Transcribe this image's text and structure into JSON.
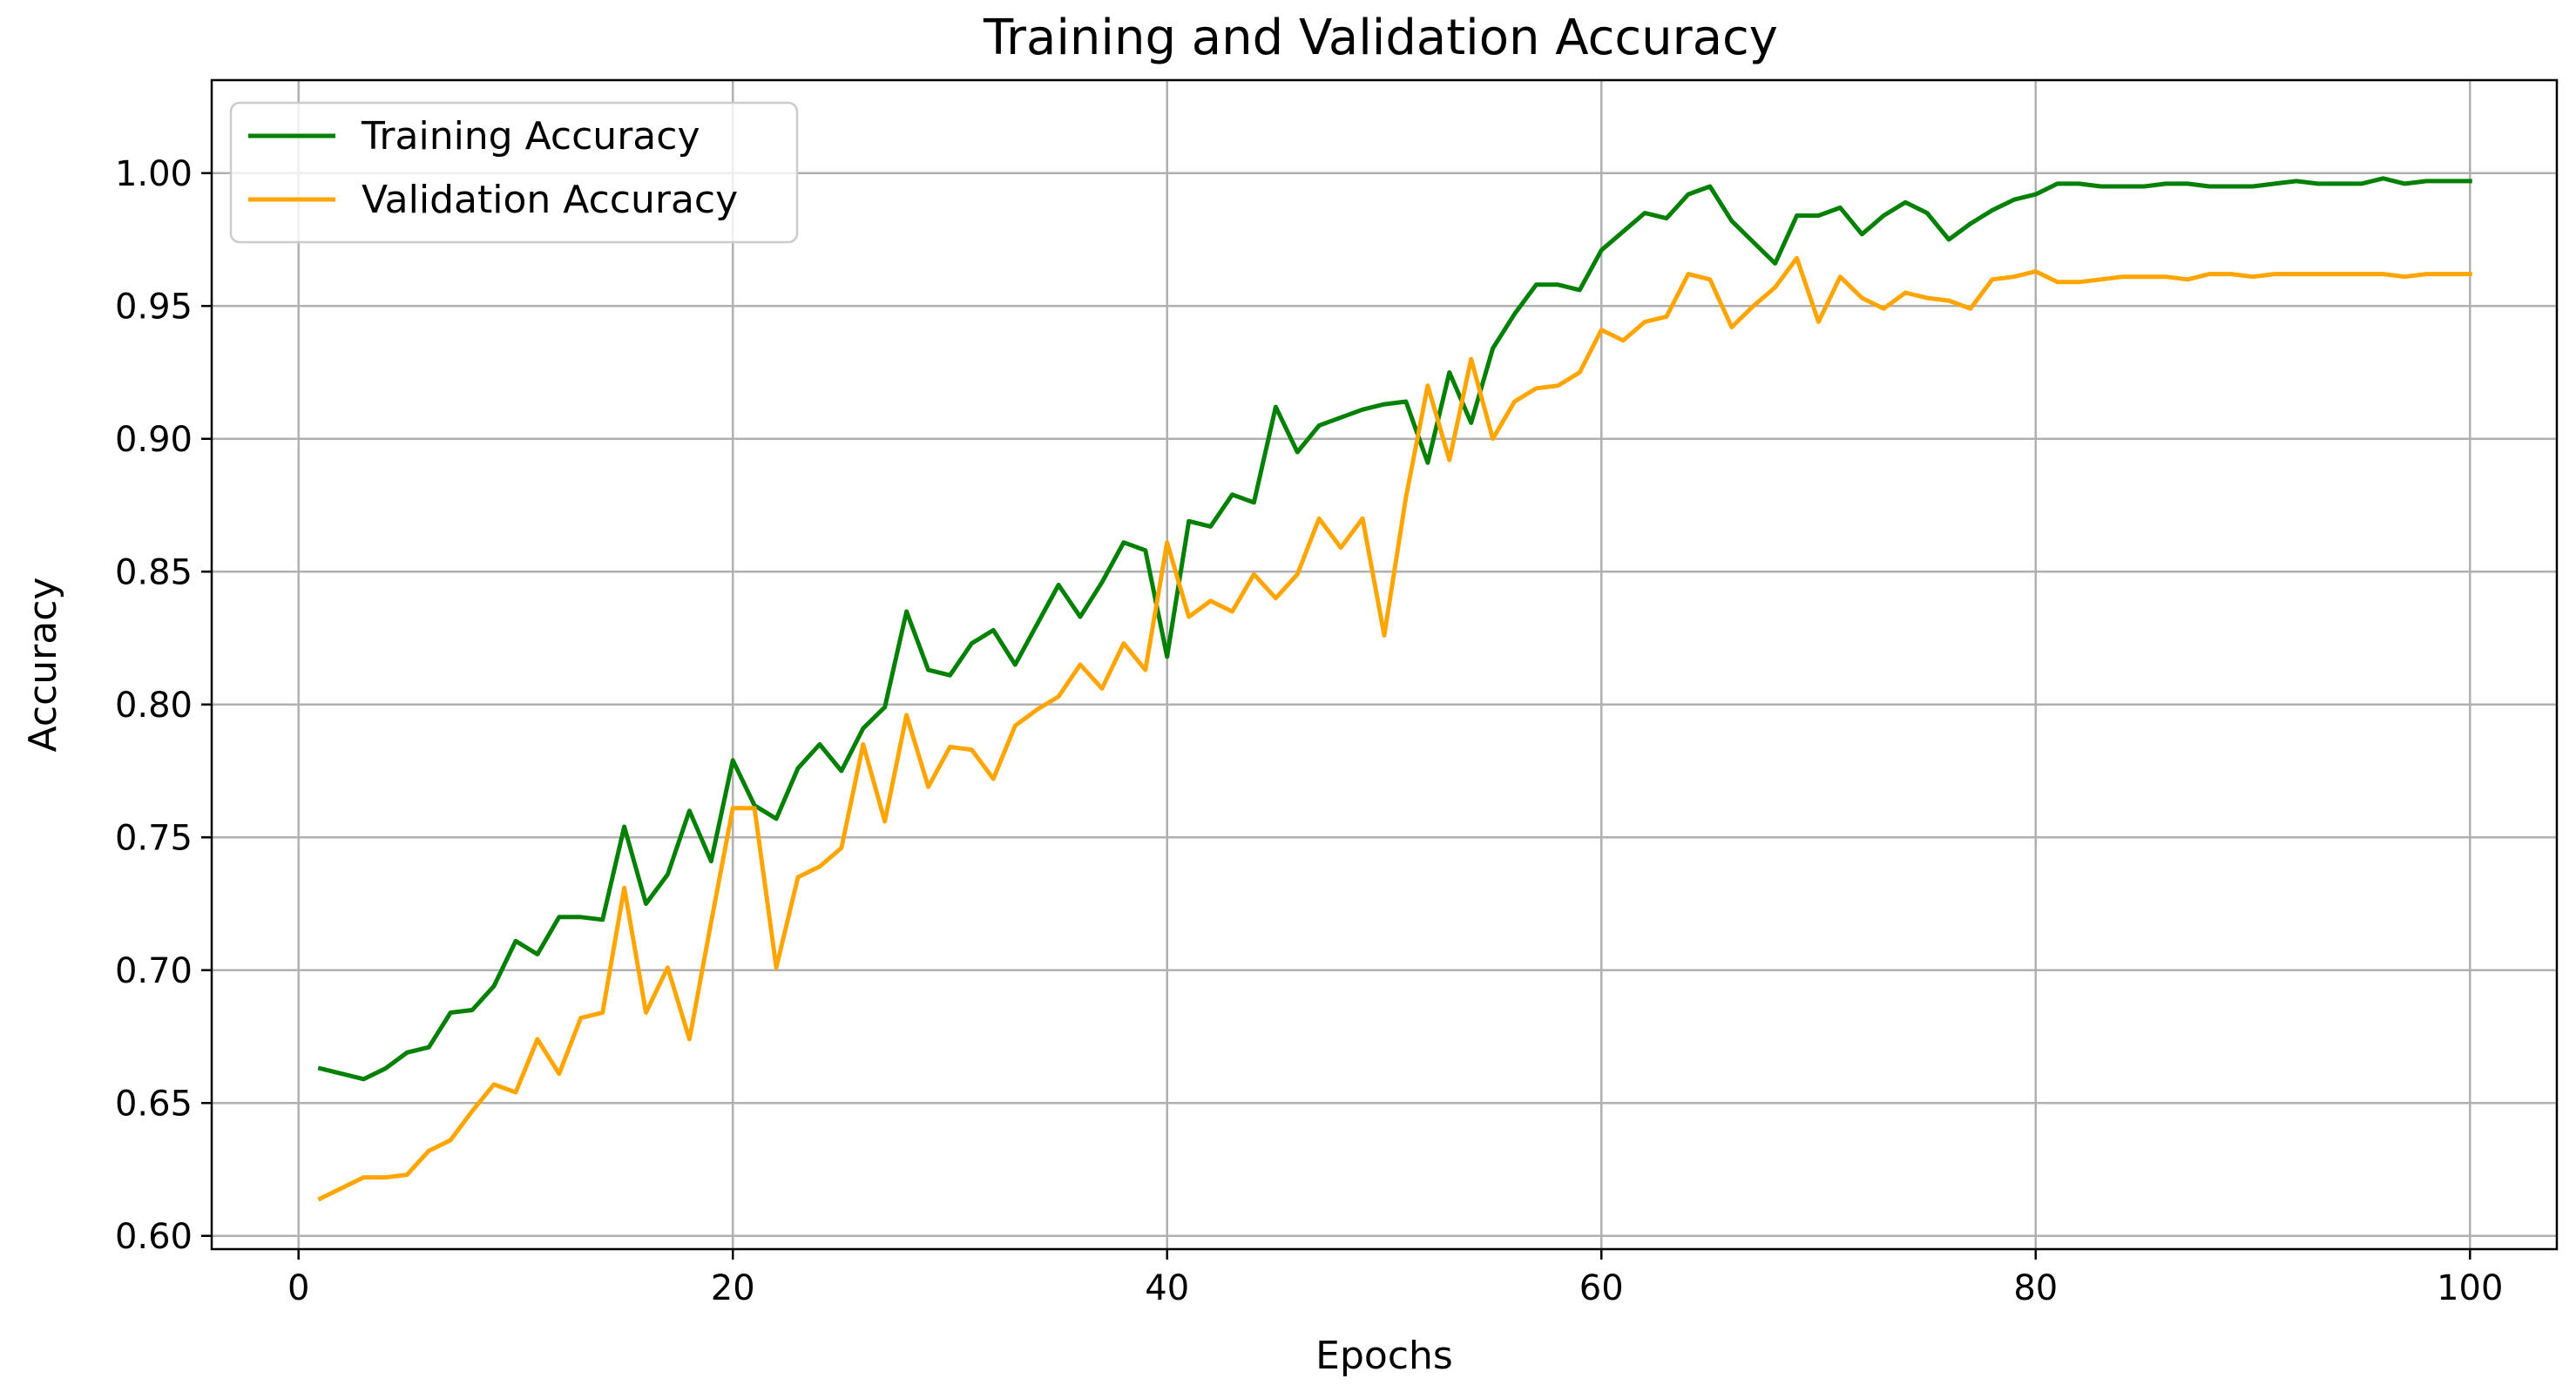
{
  "chart_data": {
    "type": "line",
    "title": "Training and Validation Accuracy",
    "xlabel": "Epochs",
    "ylabel": "Accuracy",
    "xlim": [
      -4,
      104
    ],
    "ylim": [
      0.595,
      1.035
    ],
    "xticks": [
      0,
      20,
      40,
      60,
      80,
      100
    ],
    "yticks": [
      0.6,
      0.65,
      0.7,
      0.75,
      0.8,
      0.85,
      0.9,
      0.95,
      1.0
    ],
    "xtick_labels": [
      "0",
      "20",
      "40",
      "60",
      "80",
      "100"
    ],
    "ytick_labels": [
      "0.60",
      "0.65",
      "0.70",
      "0.75",
      "0.80",
      "0.85",
      "0.90",
      "0.95",
      "1.00"
    ],
    "grid": true,
    "legend_position": "top-left",
    "x_start": 1,
    "series": [
      {
        "name": "Training Accuracy",
        "color": "#008000",
        "values": [
          0.663,
          0.661,
          0.659,
          0.663,
          0.669,
          0.671,
          0.684,
          0.685,
          0.694,
          0.711,
          0.706,
          0.72,
          0.72,
          0.719,
          0.754,
          0.725,
          0.736,
          0.76,
          0.741,
          0.779,
          0.762,
          0.757,
          0.776,
          0.785,
          0.775,
          0.791,
          0.799,
          0.835,
          0.813,
          0.811,
          0.823,
          0.828,
          0.815,
          0.83,
          0.845,
          0.833,
          0.846,
          0.861,
          0.858,
          0.818,
          0.869,
          0.867,
          0.879,
          0.876,
          0.912,
          0.895,
          0.905,
          0.908,
          0.911,
          0.913,
          0.914,
          0.891,
          0.925,
          0.906,
          0.934,
          0.947,
          0.958,
          0.958,
          0.956,
          0.971,
          0.978,
          0.985,
          0.983,
          0.992,
          0.995,
          0.982,
          0.974,
          0.966,
          0.984,
          0.984,
          0.987,
          0.977,
          0.984,
          0.989,
          0.985,
          0.975,
          0.981,
          0.986,
          0.99,
          0.992,
          0.996,
          0.996,
          0.995,
          0.995,
          0.995,
          0.996,
          0.996,
          0.995,
          0.995,
          0.995,
          0.996,
          0.997,
          0.996,
          0.996,
          0.996,
          0.998,
          0.996,
          0.997,
          0.997,
          0.997
        ]
      },
      {
        "name": "Validation Accuracy",
        "color": "#FFA500",
        "values": [
          0.614,
          0.618,
          0.622,
          0.622,
          0.623,
          0.632,
          0.636,
          0.647,
          0.657,
          0.654,
          0.674,
          0.661,
          0.682,
          0.684,
          0.731,
          0.684,
          0.701,
          0.674,
          0.718,
          0.761,
          0.761,
          0.701,
          0.735,
          0.739,
          0.746,
          0.785,
          0.756,
          0.796,
          0.769,
          0.784,
          0.783,
          0.772,
          0.792,
          0.798,
          0.803,
          0.815,
          0.806,
          0.823,
          0.813,
          0.861,
          0.833,
          0.839,
          0.835,
          0.849,
          0.84,
          0.849,
          0.87,
          0.859,
          0.87,
          0.826,
          0.878,
          0.92,
          0.892,
          0.93,
          0.9,
          0.914,
          0.919,
          0.92,
          0.925,
          0.941,
          0.937,
          0.944,
          0.946,
          0.962,
          0.96,
          0.942,
          0.95,
          0.957,
          0.968,
          0.944,
          0.961,
          0.953,
          0.949,
          0.955,
          0.953,
          0.952,
          0.949,
          0.96,
          0.961,
          0.963,
          0.959,
          0.959,
          0.96,
          0.961,
          0.961,
          0.961,
          0.96,
          0.962,
          0.962,
          0.961,
          0.962,
          0.962,
          0.962,
          0.962,
          0.962,
          0.962,
          0.961,
          0.962,
          0.962,
          0.962
        ]
      }
    ]
  }
}
